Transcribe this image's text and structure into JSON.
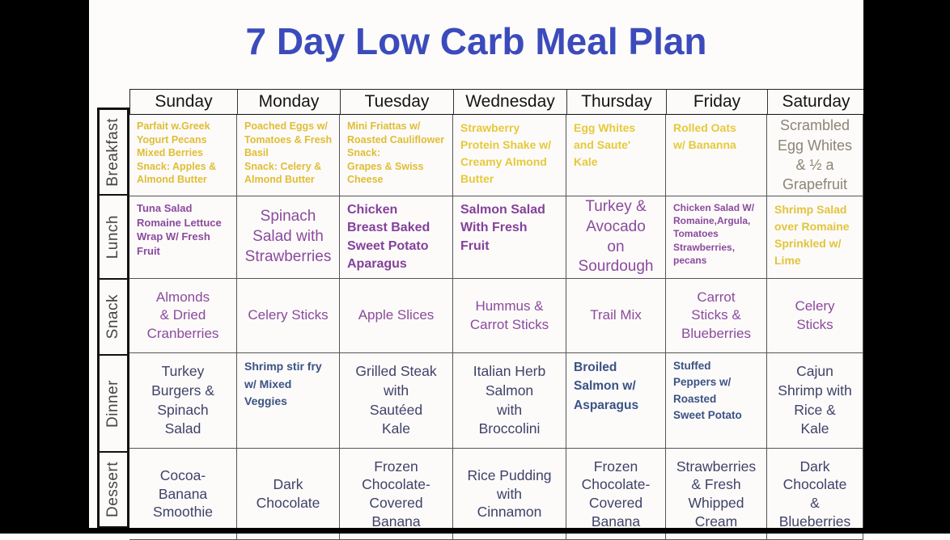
{
  "title": "7 Day Low Carb Meal Plan",
  "days": [
    "Sunday",
    "Monday",
    "Tuesday",
    "Wednesday",
    "Thursday",
    "Friday",
    "Saturday"
  ],
  "meal_labels": [
    "Breakfast",
    "Lunch",
    "Snack",
    "Dinner",
    "Dessert"
  ],
  "plan": {
    "breakfast": {
      "sunday": "Parfait w.Greek\nYogurt Pecans\nMixed Berries\nSnack: Apples &\nAlmond Butter",
      "monday": "Poached Eggs w/\nTomatoes & Fresh\nBasil\nSnack: Celery &\nAlmond Butter",
      "tuesday": "Mini Friattas w/\nRoasted Cauliflower\nSnack:\nGrapes & Swiss\nCheese",
      "wednesday": "Strawberry\nProtein Shake w/\nCreamy Almond\nButter",
      "thursday": "Egg Whites\nand Saute'\nKale",
      "friday": "Rolled Oats\nw/ Bananna",
      "saturday": "Scrambled\nEgg Whites\n& ½ a\nGrapefruit"
    },
    "lunch": {
      "sunday": "Tuna Salad\nRomaine Lettuce\nWrap W/ Fresh\nFruit",
      "monday": "Spinach\nSalad with\nStrawberries",
      "tuesday": "Chicken\nBreast Baked\nSweet Potato\nAparagus",
      "wednesday": "Salmon Salad\nWith Fresh\nFruit",
      "thursday": "Turkey &\nAvocado\non\nSourdough",
      "friday": "Chicken Salad W/\nRomaine,Argula,\nTomatoes\nStrawberries,\npecans",
      "saturday": "Shrimp Salad\nover Romaine\nSprinkled w/\nLime"
    },
    "snack": {
      "sunday": "Almonds\n& Dried\nCranberries",
      "monday": "Celery Sticks",
      "tuesday": "Apple Slices",
      "wednesday": "Hummus &\nCarrot Sticks",
      "thursday": "Trail Mix",
      "friday": "Carrot\nSticks &\nBlueberries",
      "saturday": "Celery\nSticks"
    },
    "dinner": {
      "sunday": "Turkey\nBurgers &\nSpinach\nSalad",
      "monday": "Shrimp stir fry\nw/ Mixed\nVeggies",
      "tuesday": "Grilled Steak\nwith\nSautéed\nKale",
      "wednesday": "Italian Herb\nSalmon\nwith\nBroccolini",
      "thursday": "Broiled\nSalmon w/\nAsparagus",
      "friday": "Stuffed\nPeppers w/\nRoasted\nSweet Potato",
      "saturday": "Cajun\nShrimp with\nRice &\nKale"
    },
    "dessert": {
      "sunday": "Cocoa-\nBanana\nSmoothie",
      "monday": "Dark\nChocolate",
      "tuesday": "Frozen\nChocolate-\nCovered\nBanana",
      "wednesday": "Rice Pudding\nwith\nCinnamon",
      "thursday": "Frozen\nChocolate-\nCovered\nBanana",
      "friday": "Strawberries\n& Fresh\nWhipped\nCream",
      "saturday": "Dark\nChocolate\n&\nBlueberries"
    }
  },
  "colors": {
    "title_blue": "#3c4bbb",
    "breakfast_yellow": "#e6c93a",
    "lunch_purple": "#8b4a9d",
    "dinner_navy": "#3f4268",
    "dinner_bold_blue": "#3b5284",
    "saturday_breakfast_tan": "#8d8573",
    "letterbox_black": "#000000"
  }
}
